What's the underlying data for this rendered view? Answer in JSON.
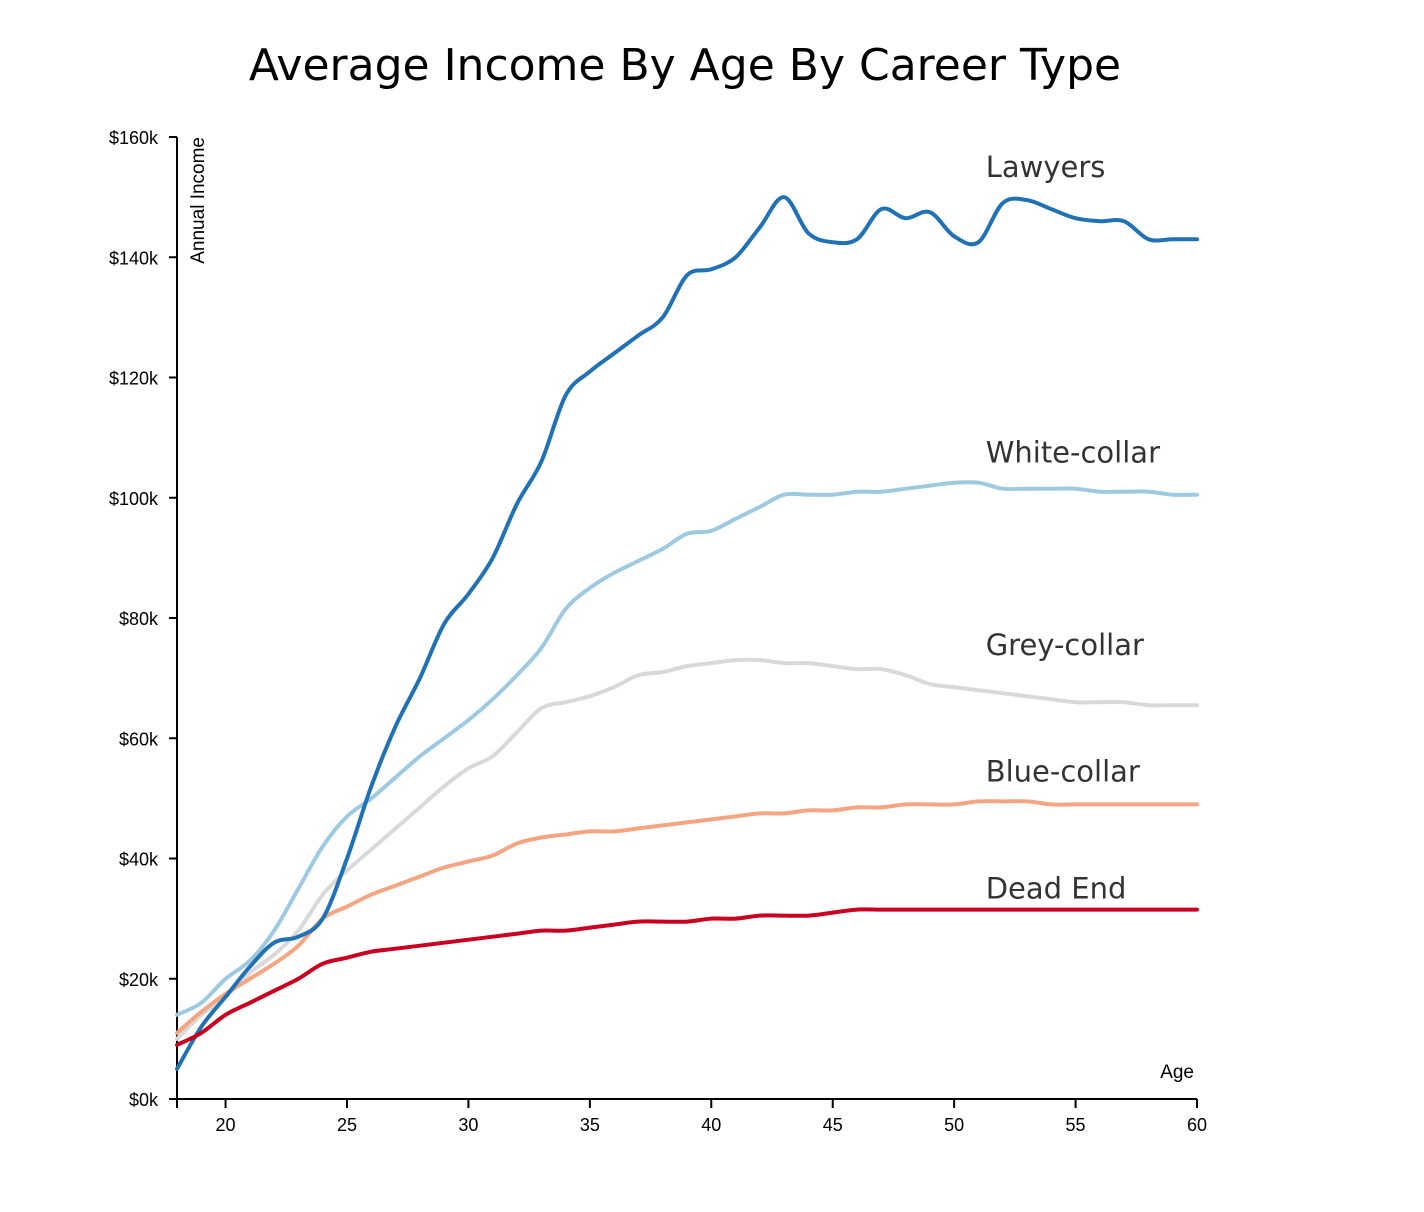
{
  "chart_data": {
    "type": "line",
    "title": "Average Income By Age By Career Type",
    "xlabel": "Age",
    "ylabel": "Annual Income",
    "xlim": [
      18,
      60
    ],
    "ylim": [
      0,
      160000
    ],
    "x_ticks": [
      {
        "value": 20,
        "label": "20"
      },
      {
        "value": 25,
        "label": "25"
      },
      {
        "value": 30,
        "label": "30"
      },
      {
        "value": 35,
        "label": "35"
      },
      {
        "value": 40,
        "label": "40"
      },
      {
        "value": 45,
        "label": "45"
      },
      {
        "value": 50,
        "label": "50"
      },
      {
        "value": 55,
        "label": "55"
      },
      {
        "value": 60,
        "label": "60"
      }
    ],
    "y_ticks": [
      {
        "value": 0,
        "label": "$0k"
      },
      {
        "value": 20000,
        "label": "$20k"
      },
      {
        "value": 40000,
        "label": "$40k"
      },
      {
        "value": 60000,
        "label": "$60k"
      },
      {
        "value": 80000,
        "label": "$80k"
      },
      {
        "value": 100000,
        "label": "$100k"
      },
      {
        "value": 120000,
        "label": "$120k"
      },
      {
        "value": 140000,
        "label": "$140k"
      },
      {
        "value": 160000,
        "label": "$160k"
      }
    ],
    "grid": false,
    "x": [
      18,
      19,
      20,
      21,
      22,
      23,
      24,
      25,
      26,
      27,
      28,
      29,
      30,
      31,
      32,
      33,
      34,
      35,
      36,
      37,
      38,
      39,
      40,
      41,
      42,
      43,
      44,
      45,
      46,
      47,
      48,
      49,
      50,
      51,
      52,
      53,
      54,
      55,
      56,
      57,
      58,
      59,
      60
    ],
    "series": [
      {
        "name": "Lawyers",
        "color": "#2171b5",
        "label": "Lawyers",
        "values": [
          5000,
          12000,
          17000,
          22000,
          26000,
          27000,
          30000,
          40000,
          52000,
          62000,
          70000,
          79000,
          84000,
          90000,
          99000,
          106000,
          117000,
          121000,
          124000,
          127000,
          130000,
          137000,
          138000,
          140000,
          145000,
          150000,
          144000,
          142500,
          143000,
          148000,
          146500,
          147500,
          143500,
          142500,
          149000,
          149500,
          148000,
          146500,
          146000,
          146000,
          143000,
          143000,
          143000
        ],
        "label_value": 155000
      },
      {
        "name": "White-collar",
        "color": "#9ecae1",
        "label": "White-collar",
        "values": [
          14000,
          16000,
          20000,
          23000,
          28000,
          35000,
          42000,
          47000,
          50000,
          53500,
          57000,
          60000,
          63000,
          66500,
          70500,
          75000,
          81500,
          85000,
          87500,
          89500,
          91500,
          94000,
          94500,
          96500,
          98500,
          100500,
          100500,
          100500,
          101000,
          101000,
          101500,
          102000,
          102500,
          102500,
          101500,
          101500,
          101500,
          101500,
          101000,
          101000,
          101000,
          100500,
          100500
        ],
        "label_value": 107500
      },
      {
        "name": "Grey-collar",
        "color": "#d9d9d9",
        "label": "Grey-collar",
        "values": [
          10000,
          14000,
          17000,
          21000,
          24000,
          28000,
          34000,
          38000,
          41500,
          45000,
          48500,
          52000,
          55000,
          57000,
          61000,
          65000,
          66000,
          67000,
          68500,
          70500,
          71000,
          72000,
          72500,
          73000,
          73000,
          72500,
          72500,
          72000,
          71500,
          71500,
          70500,
          69000,
          68500,
          68000,
          67500,
          67000,
          66500,
          66000,
          66000,
          66000,
          65500,
          65500,
          65500
        ],
        "label_value": 75500
      },
      {
        "name": "Blue-collar",
        "color": "#f4a582",
        "label": "Blue-collar",
        "values": [
          11000,
          14500,
          17500,
          20000,
          22500,
          25500,
          30000,
          32000,
          34000,
          35500,
          37000,
          38500,
          39500,
          40500,
          42500,
          43500,
          44000,
          44500,
          44500,
          45000,
          45500,
          46000,
          46500,
          47000,
          47500,
          47500,
          48000,
          48000,
          48500,
          48500,
          49000,
          49000,
          49000,
          49500,
          49500,
          49500,
          49000,
          49000,
          49000,
          49000,
          49000,
          49000,
          49000
        ],
        "label_value": 54500
      },
      {
        "name": "Dead End",
        "color": "#ca0020",
        "label": "Dead End",
        "values": [
          9000,
          11000,
          14000,
          16000,
          18000,
          20000,
          22500,
          23500,
          24500,
          25000,
          25500,
          26000,
          26500,
          27000,
          27500,
          28000,
          28000,
          28500,
          29000,
          29500,
          29500,
          29500,
          30000,
          30000,
          30500,
          30500,
          30500,
          31000,
          31500,
          31500,
          31500,
          31500,
          31500,
          31500,
          31500,
          31500,
          31500,
          31500,
          31500,
          31500,
          31500,
          31500,
          31500
        ],
        "label_value": 35000
      }
    ]
  }
}
